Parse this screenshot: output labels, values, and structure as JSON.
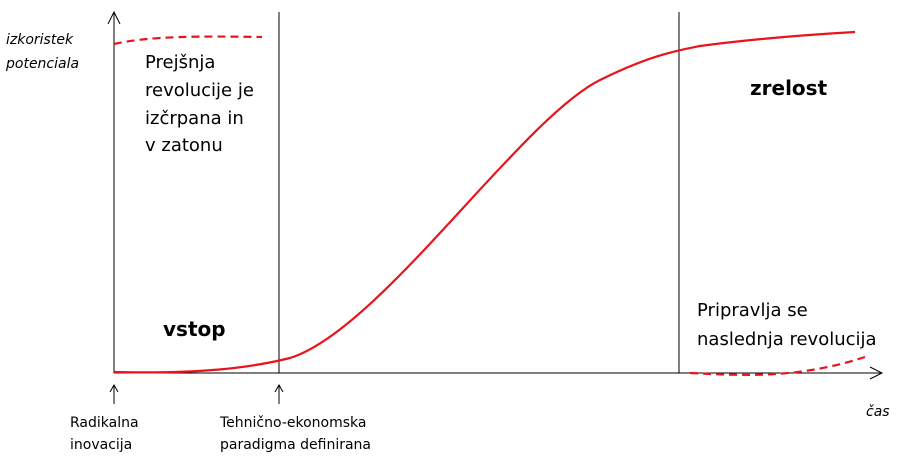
{
  "axes": {
    "y_label": [
      "izkoristek",
      "potenciala"
    ],
    "x_label": "čas"
  },
  "phases": {
    "previous": [
      "Prejšnja",
      "revolucije je",
      "izčrpana in",
      "v zatonu"
    ],
    "maturity": "zrelost",
    "entry": "vstop",
    "next": [
      "Pripravlja se",
      "naslednja revolucija"
    ]
  },
  "milestones": [
    {
      "lines": [
        "Radikalna",
        "inovacija"
      ]
    },
    {
      "lines": [
        "Tehnično-ekonomska",
        "paradigma definirana"
      ]
    }
  ]
}
